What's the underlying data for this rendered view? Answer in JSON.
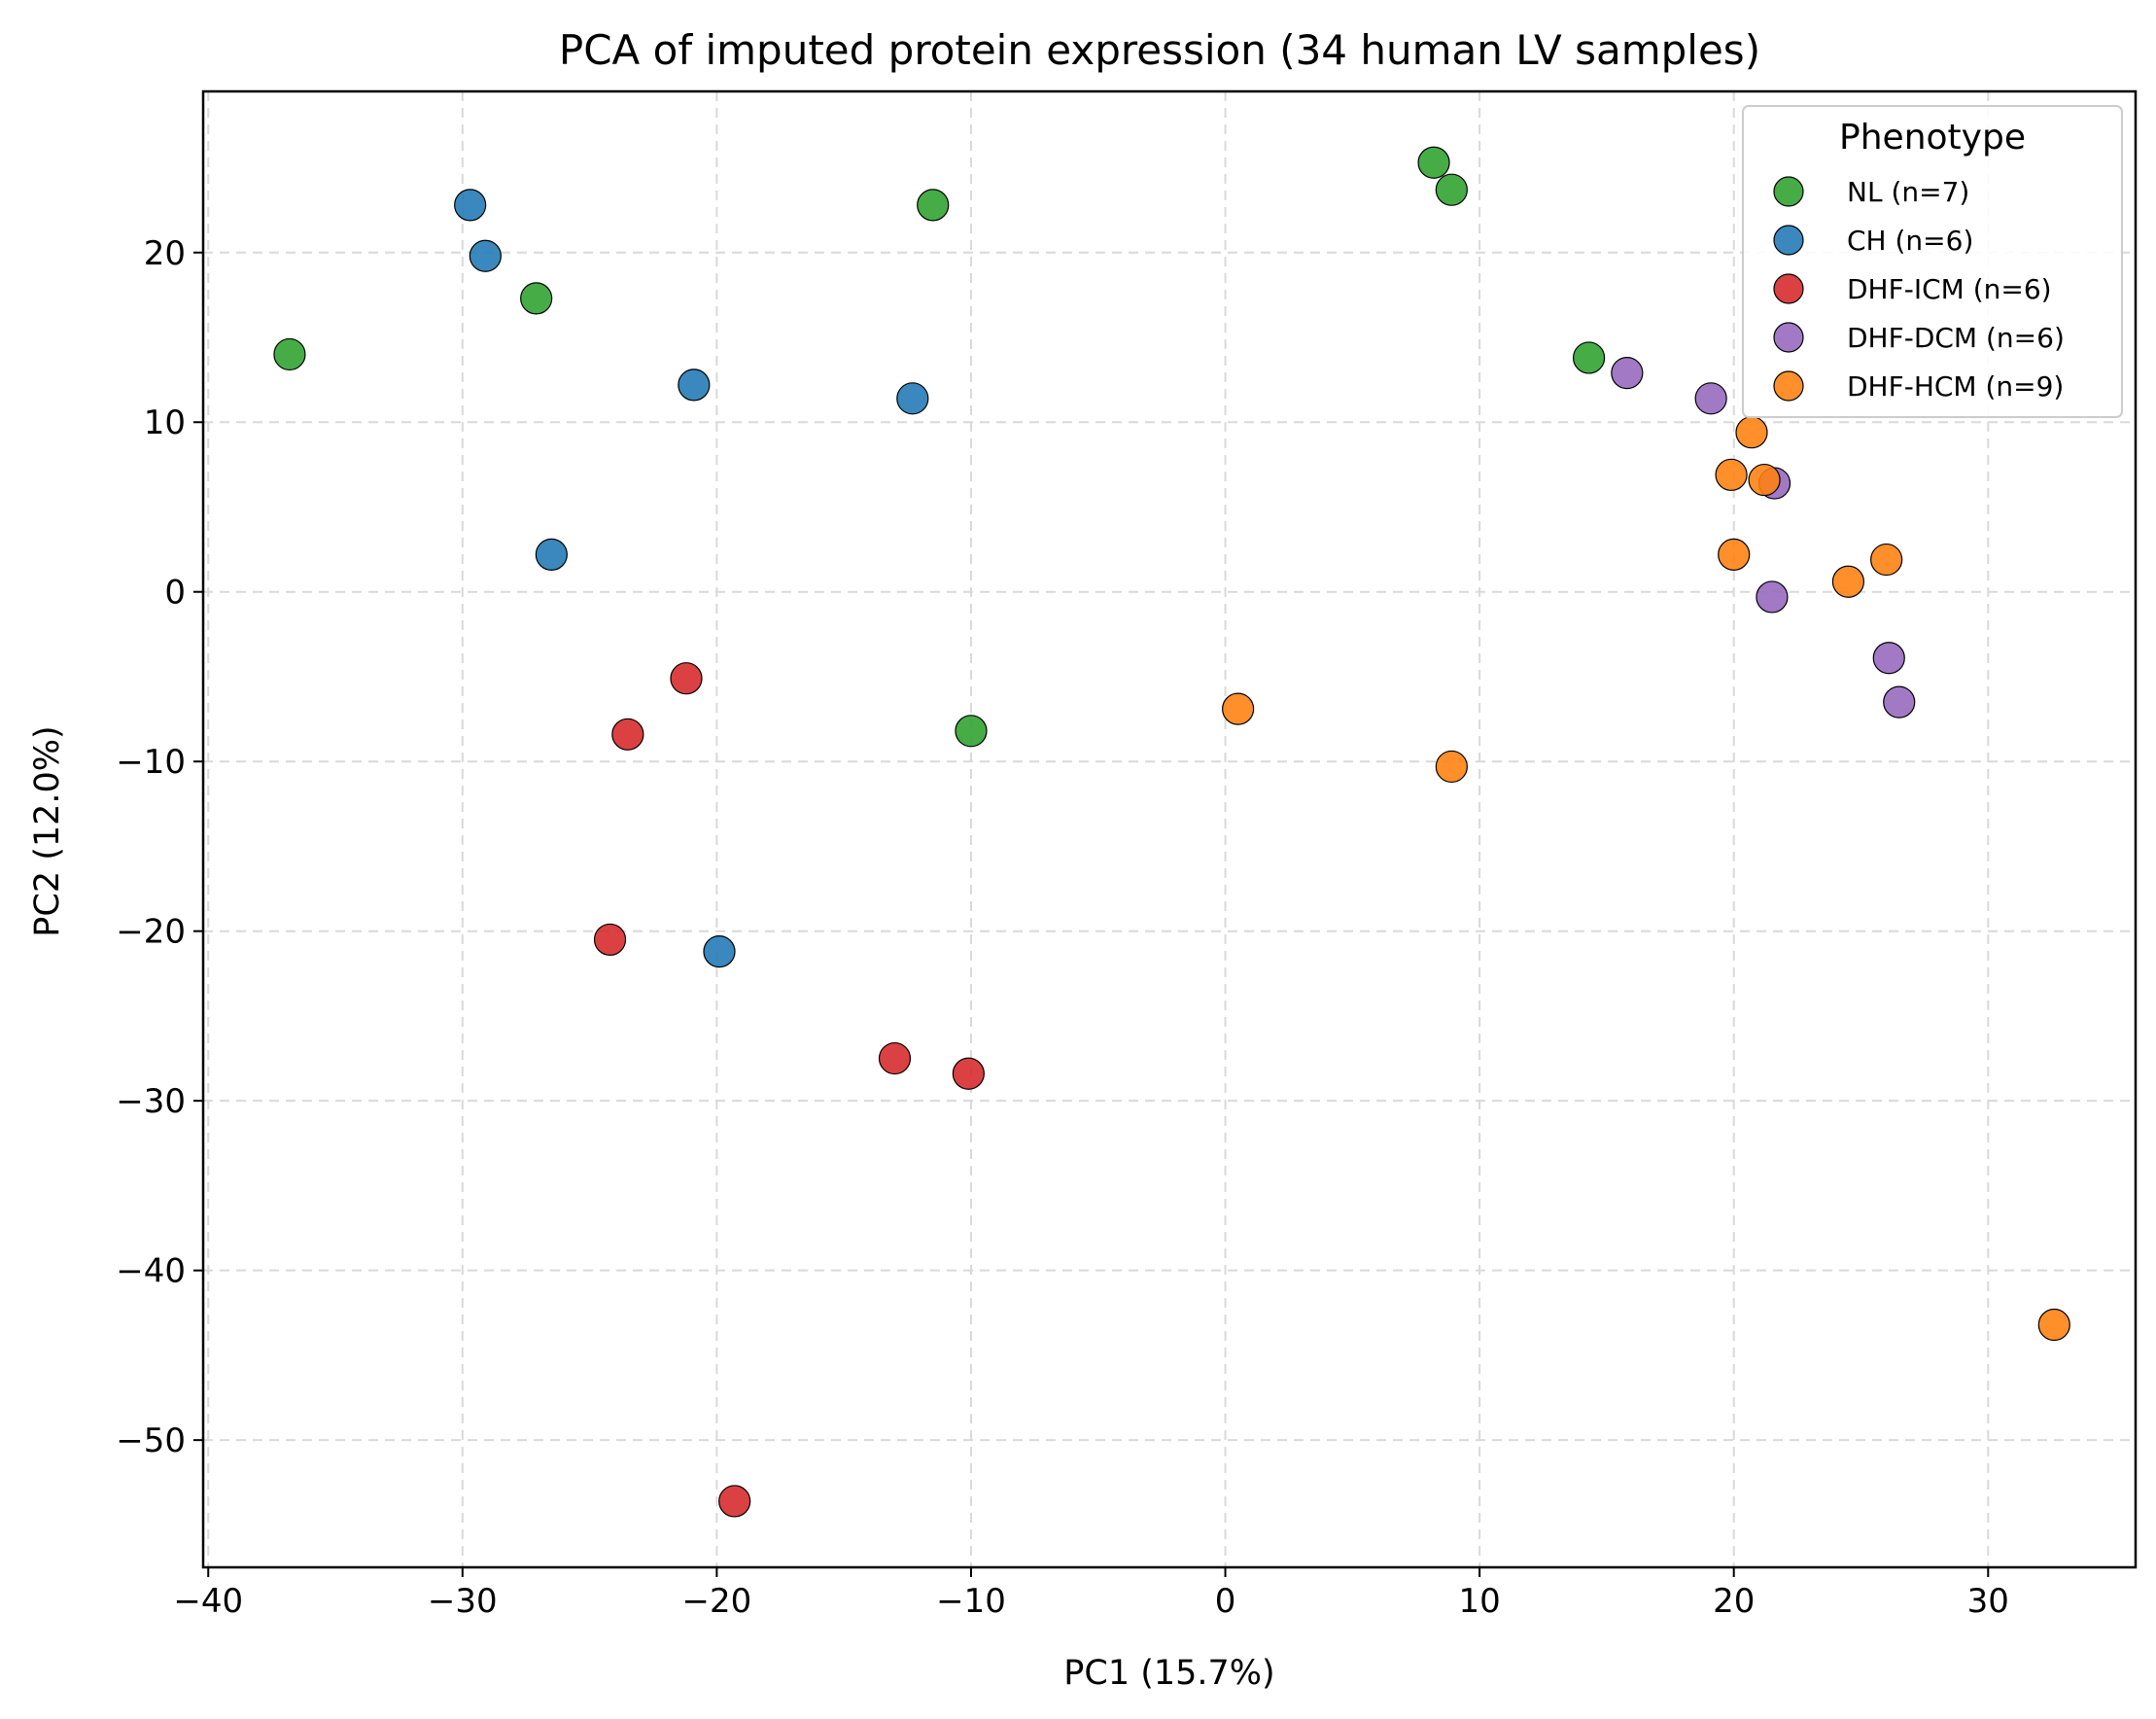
{
  "chart_data": {
    "type": "scatter",
    "title": "PCA of imputed protein expression (34 human LV samples)",
    "xlabel": "PC1 (15.7%)",
    "ylabel": "PC2 (12.0%)",
    "xlim": [
      -40.2,
      35.8
    ],
    "ylim": [
      -57.5,
      29.5
    ],
    "xticks": [
      -40,
      -30,
      -20,
      -10,
      0,
      10,
      20,
      30
    ],
    "xtick_labels": [
      "−40",
      "−30",
      "−20",
      "−10",
      "0",
      "10",
      "20",
      "30"
    ],
    "yticks": [
      -50,
      -40,
      -30,
      -20,
      -10,
      0,
      10,
      20
    ],
    "ytick_labels": [
      "−50",
      "−40",
      "−30",
      "−20",
      "−10",
      "0",
      "10",
      "20"
    ],
    "grid": true,
    "legend": {
      "title": "Phenotype",
      "placement": "top-right"
    },
    "series": [
      {
        "name": "NL (n=7)",
        "color": "#2ca02c",
        "points": [
          [
            -36.8,
            14.0
          ],
          [
            -27.1,
            17.3
          ],
          [
            -11.5,
            22.8
          ],
          [
            -10.0,
            -8.2
          ],
          [
            8.2,
            25.3
          ],
          [
            8.9,
            23.7
          ],
          [
            14.3,
            13.8
          ]
        ]
      },
      {
        "name": "CH (n=6)",
        "color": "#1f77b4",
        "points": [
          [
            -29.7,
            22.8
          ],
          [
            -29.1,
            19.8
          ],
          [
            -20.9,
            12.2
          ],
          [
            -12.3,
            11.4
          ],
          [
            -26.5,
            2.2
          ],
          [
            -19.9,
            -21.2
          ]
        ]
      },
      {
        "name": "DHF-ICM (n=6)",
        "color": "#d62728",
        "points": [
          [
            -21.2,
            -5.1
          ],
          [
            -23.5,
            -8.4
          ],
          [
            -24.2,
            -20.5
          ],
          [
            -13.0,
            -27.5
          ],
          [
            -10.1,
            -28.4
          ],
          [
            -19.3,
            -53.6
          ]
        ]
      },
      {
        "name": "DHF-DCM (n=6)",
        "color": "#9467bd",
        "points": [
          [
            15.8,
            12.9
          ],
          [
            19.1,
            11.4
          ],
          [
            21.6,
            6.4
          ],
          [
            21.5,
            -0.3
          ],
          [
            26.1,
            -3.9
          ],
          [
            26.5,
            -6.5
          ]
        ]
      },
      {
        "name": "DHF-HCM (n=9)",
        "color": "#ff7f0e",
        "points": [
          [
            20.7,
            9.4
          ],
          [
            19.9,
            6.9
          ],
          [
            21.2,
            6.6
          ],
          [
            20.0,
            2.2
          ],
          [
            24.5,
            0.6
          ],
          [
            26.0,
            1.9
          ],
          [
            0.5,
            -6.9
          ],
          [
            8.9,
            -10.3
          ],
          [
            32.6,
            -43.2
          ]
        ]
      }
    ]
  }
}
